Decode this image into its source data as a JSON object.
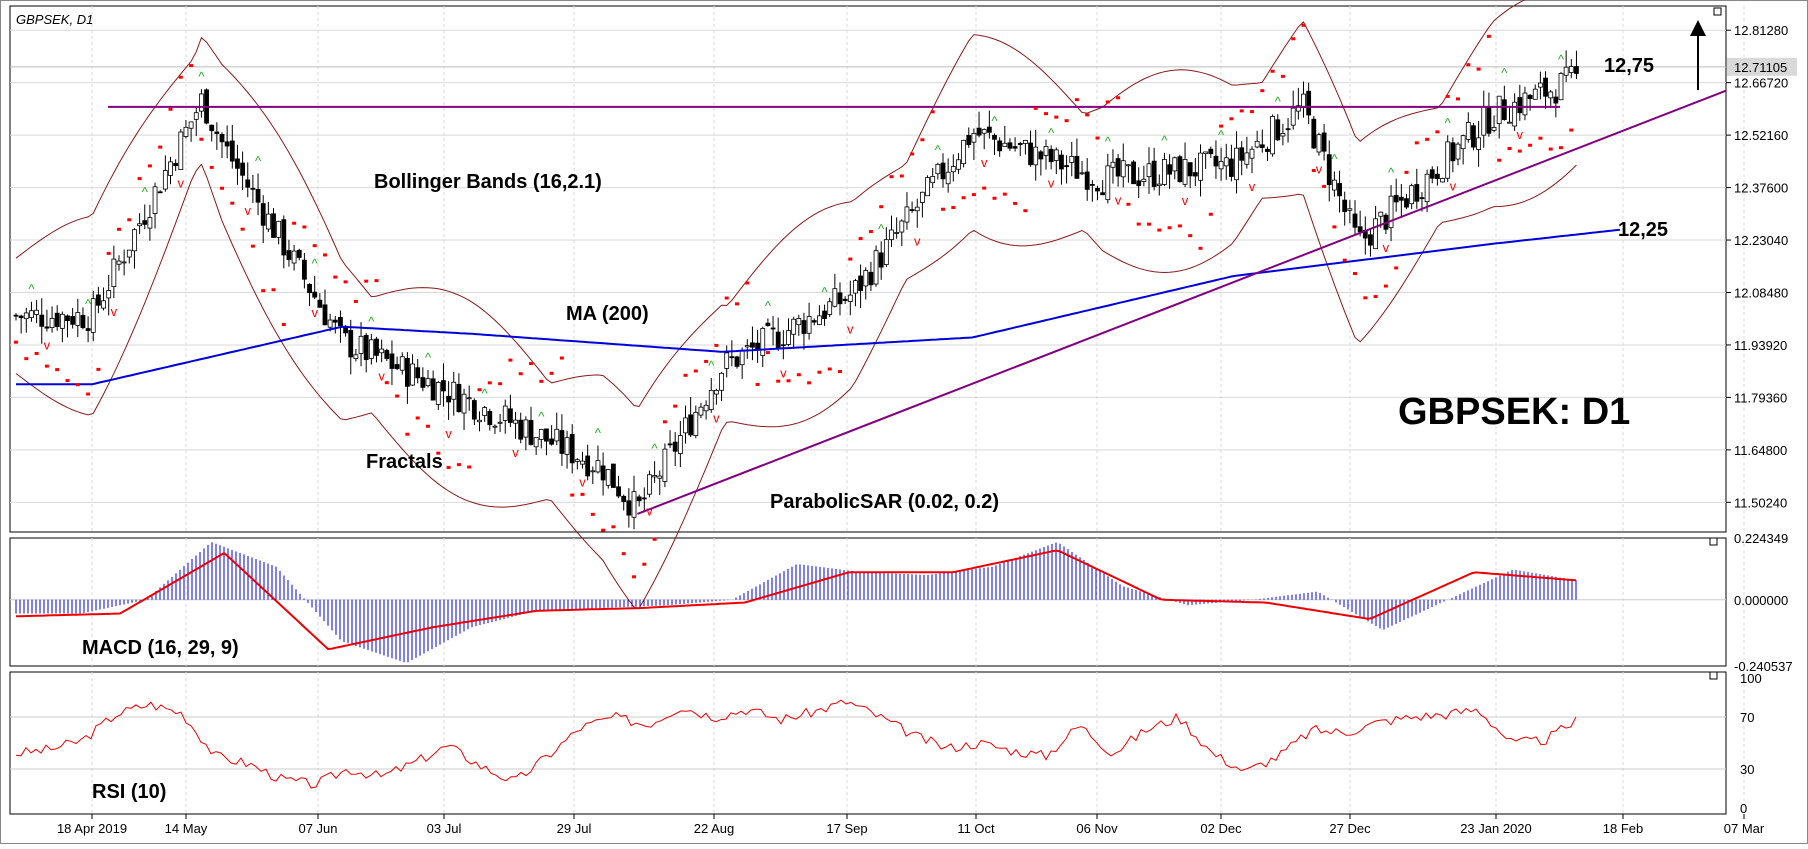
{
  "chart_data": [
    {
      "type": "candlestick",
      "title": "GBPSEK, D1",
      "symbol_label": "GBPSEK: D1",
      "x_ticks": [
        "18 Apr 2019",
        "14 May",
        "07 Jun",
        "03 Jul",
        "29 Jul",
        "22 Aug",
        "17 Sep",
        "11 Oct",
        "06 Nov",
        "02 Dec",
        "27 Dec",
        "23 Jan 2020",
        "18 Feb",
        "07 Mar"
      ],
      "y_ticks": [
        "12.81280",
        "12.66720",
        "12.52160",
        "12.37600",
        "12.23040",
        "12.08480",
        "11.93920",
        "11.79360",
        "11.64800",
        "11.50240"
      ],
      "ylim": [
        11.42,
        12.88
      ],
      "last_price": "12.71105",
      "ohlc_approx": [
        {
          "date": "18 Apr 2019",
          "close": 12.02
        },
        {
          "date": "10 May 2019",
          "close": 12.62
        },
        {
          "date": "14 May 2019",
          "close": 12.5
        },
        {
          "date": "07 Jun 2019",
          "close": 11.95
        },
        {
          "date": "03 Jul 2019",
          "close": 11.78
        },
        {
          "date": "29 Jul 2019",
          "close": 11.6
        },
        {
          "date": "05 Aug 2019",
          "close": 11.48
        },
        {
          "date": "22 Aug 2019",
          "close": 11.88
        },
        {
          "date": "17 Sep 2019",
          "close": 12.08
        },
        {
          "date": "11 Oct 2019",
          "close": 12.53
        },
        {
          "date": "06 Nov 2019",
          "close": 12.4
        },
        {
          "date": "02 Dec 2019",
          "close": 12.44
        },
        {
          "date": "16 Dec 2019",
          "close": 12.6
        },
        {
          "date": "27 Dec 2019",
          "close": 12.22
        },
        {
          "date": "23 Jan 2020",
          "close": 12.58
        },
        {
          "date": "14 Feb 2020",
          "close": 12.71
        }
      ],
      "ma200_approx": [
        {
          "date": "18 Apr 2019",
          "value": 11.83
        },
        {
          "date": "07 Jun 2019",
          "value": 11.99
        },
        {
          "date": "03 Jul 2019",
          "value": 11.97
        },
        {
          "date": "22 Aug 2019",
          "value": 11.92
        },
        {
          "date": "11 Oct 2019",
          "value": 11.96
        },
        {
          "date": "02 Dec 2019",
          "value": 12.13
        },
        {
          "date": "23 Jan 2020",
          "value": 12.22
        },
        {
          "date": "18 Feb 2020",
          "value": 12.26
        }
      ],
      "resistance_level": 12.6,
      "support_trendline": [
        {
          "date": "05 Aug 2019",
          "value": 11.47
        },
        {
          "date": "26 Feb 2020",
          "value": 12.62
        }
      ],
      "annotations": [
        "Bollinger Bands (16,2.1)",
        "MA (200)",
        "Fractals",
        "ParabolicSAR (0.02, 0.2)",
        "12,75",
        "12,25"
      ],
      "colors": {
        "ma": "#0000dd",
        "bands": "#8b1a1a",
        "level": "#800080",
        "sar": "#ff0000",
        "fractal_up": "#22aa22",
        "fractal_down": "#ff0000"
      }
    },
    {
      "type": "histogram+line",
      "label": "MACD (16, 29, 9)",
      "y_ticks": [
        "0.224349",
        "0.000000",
        "-0.240537"
      ],
      "ylim": [
        -0.240537,
        0.224349
      ],
      "histogram_approx": [
        -0.05,
        -0.05,
        0.0,
        0.21,
        0.12,
        -0.15,
        -0.23,
        -0.1,
        -0.04,
        -0.03,
        -0.02,
        0.0,
        0.13,
        0.1,
        0.09,
        0.12,
        0.21,
        0.05,
        -0.02,
        0.0,
        0.03,
        -0.11,
        0.0,
        0.11,
        0.07
      ],
      "signal_approx": [
        -0.06,
        -0.05,
        0.17,
        -0.18,
        -0.1,
        -0.04,
        -0.03,
        -0.01,
        0.1,
        0.1,
        0.18,
        0.0,
        -0.01,
        -0.07,
        0.1,
        0.07
      ],
      "colors": {
        "histogram": "#0000ee",
        "signal": "#ee0000"
      }
    },
    {
      "type": "line",
      "label": "RSI (10)",
      "y_ticks": [
        "100",
        "70",
        "30",
        "0"
      ],
      "ylim": [
        0,
        100
      ],
      "values_approx": [
        42,
        45,
        52,
        72,
        80,
        73,
        40,
        34,
        22,
        18,
        30,
        24,
        35,
        48,
        32,
        20,
        40,
        62,
        70,
        64,
        78,
        70,
        76,
        68,
        74,
        82,
        70,
        56,
        46,
        50,
        44,
        40,
        64,
        42,
        60,
        70,
        42,
        28,
        40,
        60,
        58,
        66,
        70,
        72,
        76,
        50,
        52,
        68
      ],
      "colors": {
        "line": "#ee0000"
      }
    }
  ]
}
